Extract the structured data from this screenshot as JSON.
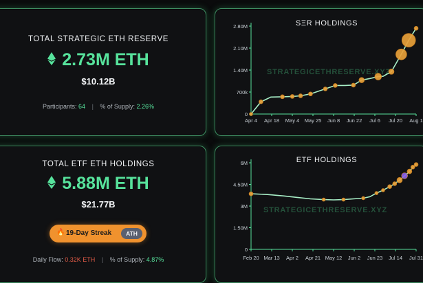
{
  "reserve": {
    "title": "TOTAL STRATEGIC ETH RESERVE",
    "amount": "2.73M ETH",
    "usd": "$10.12B",
    "participants_label": "Participants:",
    "participants_value": "64",
    "supply_label": "% of Supply:",
    "supply_value": "2.26%"
  },
  "etf": {
    "title": "TOTAL ETF ETH HOLDINGS",
    "amount": "5.88M ETH",
    "usd": "$21.77B",
    "streak_label": "19-Day Streak",
    "streak_badge": "ATH",
    "flow_label": "Daily Flow:",
    "flow_value": "0.32K ETH",
    "supply_label": "% of Supply:",
    "supply_value": "4.87%"
  },
  "watermark": "STRATEGICETHRESERVE.XYZ",
  "colors": {
    "accent": "#57e39c",
    "border": "#3f8f63",
    "negative": "#e15b47",
    "marker": "#e8a13a",
    "marker_alt": "#8b62e8"
  },
  "icons": {
    "eth": "ethereum-diamond-icon",
    "fire": "fire-icon"
  },
  "chart_data": [
    {
      "type": "line",
      "title": "SΞR HOLDINGS",
      "x_ticks": [
        "Apr 4",
        "Apr 18",
        "May 4",
        "May 25",
        "Jun 8",
        "Jun 22",
        "Jul 6",
        "Jul 20",
        "Aug 1"
      ],
      "y_ticks": [
        "0",
        "700k",
        "1.40M",
        "2.10M",
        "2.80M"
      ],
      "ylim": [
        0,
        2800000
      ],
      "grid": false,
      "series": [
        {
          "values": [
            0,
            390000,
            540000,
            550000,
            560000,
            580000,
            640000,
            800000,
            910000,
            910000,
            920000,
            1080000,
            1130000,
            1190000,
            1200000,
            1350000,
            1900000,
            2350000,
            2730000
          ]
        }
      ],
      "x_positions": [
        0,
        0.06,
        0.12,
        0.19,
        0.25,
        0.3,
        0.36,
        0.45,
        0.51,
        0.57,
        0.62,
        0.67,
        0.72,
        0.77,
        0.8,
        0.85,
        0.91,
        0.955,
        1.0
      ],
      "markers": [
        {
          "index": 0,
          "r": 2.5
        },
        {
          "index": 1,
          "r": 3
        },
        {
          "index": 3,
          "r": 3
        },
        {
          "index": 4,
          "r": 3
        },
        {
          "index": 5,
          "r": 3
        },
        {
          "index": 6,
          "r": 3
        },
        {
          "index": 7,
          "r": 3
        },
        {
          "index": 8,
          "r": 3
        },
        {
          "index": 10,
          "r": 3
        },
        {
          "index": 11,
          "r": 4
        },
        {
          "index": 13,
          "r": 5
        },
        {
          "index": 15,
          "r": 4
        },
        {
          "index": 16,
          "r": 8
        },
        {
          "index": 17,
          "r": 10
        },
        {
          "index": 18,
          "r": 3
        }
      ]
    },
    {
      "type": "line",
      "title": "ETF HOLDINGS",
      "x_ticks": [
        "Feb 20",
        "Mar 13",
        "Apr 2",
        "Apr 21",
        "May 12",
        "Jun 2",
        "Jun 23",
        "Jul 14",
        "Jul 31"
      ],
      "y_ticks": [
        "0",
        "1.50M",
        "3M",
        "4.50M",
        "6M"
      ],
      "ylim": [
        0,
        6000000
      ],
      "grid": false,
      "series": [
        {
          "values": [
            3850000,
            3800000,
            3700000,
            3600000,
            3500000,
            3450000,
            3430000,
            3450000,
            3500000,
            3550000,
            3650000,
            3900000,
            4100000,
            4350000,
            4550000,
            4800000,
            5100000,
            5400000,
            5700000,
            5880000
          ]
        }
      ],
      "x_positions": [
        0,
        0.1,
        0.2,
        0.28,
        0.36,
        0.44,
        0.5,
        0.56,
        0.62,
        0.68,
        0.72,
        0.76,
        0.8,
        0.84,
        0.87,
        0.9,
        0.93,
        0.96,
        0.98,
        1.0
      ],
      "markers": [
        {
          "index": 0,
          "r": 3
        },
        {
          "index": 5,
          "r": 2.5
        },
        {
          "index": 7,
          "r": 2.5
        },
        {
          "index": 9,
          "r": 2.5
        },
        {
          "index": 11,
          "r": 2.5
        },
        {
          "index": 12,
          "r": 2.5
        },
        {
          "index": 13,
          "r": 3
        },
        {
          "index": 14,
          "r": 3
        },
        {
          "index": 15,
          "r": 4
        },
        {
          "index": 16,
          "r": 4.5,
          "alt": true
        },
        {
          "index": 17,
          "r": 3.5
        },
        {
          "index": 18,
          "r": 3
        },
        {
          "index": 19,
          "r": 3
        }
      ]
    }
  ]
}
